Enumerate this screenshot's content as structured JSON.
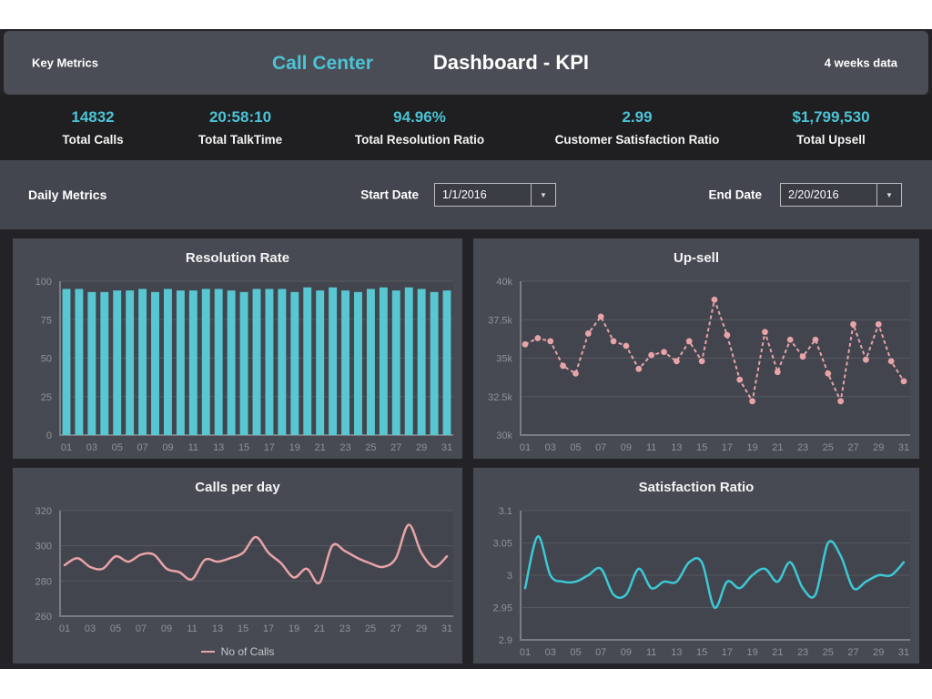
{
  "header": {
    "left_label": "Key Metrics",
    "brand": "Call Center",
    "title": "Dashboard - KPI",
    "right_label": "4 weeks data"
  },
  "kpis": [
    {
      "value": "14832",
      "label": "Total Calls"
    },
    {
      "value": "20:58:10",
      "label": "Total TalkTime"
    },
    {
      "value": "94.96%",
      "label": "Total Resolution Ratio"
    },
    {
      "value": "2.99",
      "label": "Customer Satisfaction Ratio"
    },
    {
      "value": "$1,799,530",
      "label": "Total Upsell"
    }
  ],
  "filters": {
    "section_label": "Daily Metrics",
    "start_label": "Start Date",
    "start_value": "1/1/2016",
    "end_label": "End Date",
    "end_value": "2/20/2016",
    "dropdown_arrow": "▼"
  },
  "colors": {
    "accent": "#4cc3d5",
    "pink": "#e8a3a8",
    "teal_line": "#3cc8d5",
    "bar_fill": "#58c7d2",
    "main_bg": "#232327",
    "header_bg": "#4a4d55",
    "kpi_bg": "#1f1f22",
    "filter_bg": "#44464f",
    "panel_bg": "#474a52",
    "plot_bg": "#42454d",
    "grid": "#55585f",
    "axis": "#797c83",
    "tick_text": "#8f929a"
  },
  "chart_data": [
    {
      "type": "bar",
      "title": "Resolution Rate",
      "xlabel": "",
      "ylabel": "",
      "categories": [
        "01",
        "02",
        "03",
        "04",
        "05",
        "06",
        "07",
        "08",
        "09",
        "10",
        "11",
        "12",
        "13",
        "14",
        "15",
        "16",
        "17",
        "18",
        "19",
        "20",
        "21",
        "22",
        "23",
        "24",
        "25",
        "26",
        "27",
        "28",
        "29",
        "30",
        "31"
      ],
      "x_tick_every": 2,
      "values": [
        95,
        95,
        93,
        93,
        94,
        94,
        95,
        93,
        95,
        94,
        94,
        95,
        95,
        94,
        93,
        95,
        95,
        95,
        93,
        96,
        94,
        96,
        94,
        93,
        95,
        96,
        94,
        96,
        95,
        93,
        94
      ],
      "ylim": [
        0,
        100
      ],
      "yticks": [
        0,
        25,
        50,
        75,
        100
      ],
      "ytick_labels": [
        "0",
        "25",
        "50",
        "75",
        "100"
      ],
      "grid": true,
      "color": "#58c7d2"
    },
    {
      "type": "line",
      "line_style": "dashed",
      "markers": true,
      "title": "Up-sell",
      "xlabel": "",
      "ylabel": "",
      "categories": [
        "01",
        "02",
        "03",
        "04",
        "05",
        "06",
        "07",
        "08",
        "09",
        "10",
        "11",
        "12",
        "13",
        "14",
        "15",
        "16",
        "17",
        "18",
        "19",
        "20",
        "21",
        "22",
        "23",
        "24",
        "25",
        "26",
        "27",
        "28",
        "29",
        "30",
        "31"
      ],
      "x_tick_every": 2,
      "values": [
        35.9,
        36.3,
        36.1,
        34.5,
        34.0,
        36.6,
        37.7,
        36.1,
        35.8,
        34.3,
        35.2,
        35.4,
        34.8,
        36.1,
        34.8,
        38.8,
        36.5,
        33.6,
        32.2,
        36.7,
        34.1,
        36.2,
        35.1,
        36.2,
        34.0,
        32.2,
        37.2,
        34.9,
        37.2,
        34.8,
        33.5
      ],
      "unit": "k",
      "ylim": [
        30,
        40
      ],
      "yticks": [
        30,
        32.5,
        35,
        37.5,
        40
      ],
      "ytick_labels": [
        "30k",
        "32.5k",
        "35k",
        "37.5k",
        "40k"
      ],
      "grid": true,
      "color": "#e8a3a8"
    },
    {
      "type": "line",
      "line_style": "smooth",
      "markers": false,
      "title": "Calls per day",
      "xlabel": "",
      "ylabel": "",
      "legend": "No of Calls",
      "legend_position": "bottom",
      "categories": [
        "01",
        "02",
        "03",
        "04",
        "05",
        "06",
        "07",
        "08",
        "09",
        "10",
        "11",
        "12",
        "13",
        "14",
        "15",
        "16",
        "17",
        "18",
        "19",
        "20",
        "21",
        "22",
        "23",
        "24",
        "25",
        "26",
        "27",
        "28",
        "29",
        "30",
        "31"
      ],
      "x_tick_every": 2,
      "values": [
        289,
        293,
        288,
        287,
        294,
        291,
        295,
        295,
        287,
        285,
        281,
        292,
        291,
        293,
        296,
        305,
        296,
        290,
        282,
        287,
        279,
        300,
        297,
        293,
        290,
        288,
        293,
        312,
        296,
        288,
        294
      ],
      "ylim": [
        260,
        320
      ],
      "yticks": [
        260,
        280,
        300,
        320
      ],
      "ytick_labels": [
        "260",
        "280",
        "300",
        "320"
      ],
      "grid": true,
      "color": "#e8a3a8"
    },
    {
      "type": "line",
      "line_style": "smooth",
      "markers": false,
      "title": "Satisfaction Ratio",
      "xlabel": "",
      "ylabel": "",
      "categories": [
        "01",
        "02",
        "03",
        "04",
        "05",
        "06",
        "07",
        "08",
        "09",
        "10",
        "11",
        "12",
        "13",
        "14",
        "15",
        "16",
        "17",
        "18",
        "19",
        "20",
        "21",
        "22",
        "23",
        "24",
        "25",
        "26",
        "27",
        "28",
        "29",
        "30",
        "31"
      ],
      "x_tick_every": 2,
      "values": [
        2.98,
        3.06,
        3.0,
        2.99,
        2.99,
        3.0,
        3.01,
        2.97,
        2.97,
        3.01,
        2.98,
        2.99,
        2.99,
        3.02,
        3.02,
        2.95,
        2.99,
        2.98,
        3.0,
        3.01,
        2.99,
        3.02,
        2.98,
        2.97,
        3.05,
        3.03,
        2.98,
        2.99,
        3.0,
        3.0,
        3.02
      ],
      "ylim": [
        2.9,
        3.1
      ],
      "yticks": [
        2.9,
        2.95,
        3.0,
        3.05,
        3.1
      ],
      "ytick_labels": [
        "2.9",
        "2.95",
        "3",
        "3.05",
        "3.1"
      ],
      "grid": true,
      "color": "#3cc8d5"
    }
  ]
}
